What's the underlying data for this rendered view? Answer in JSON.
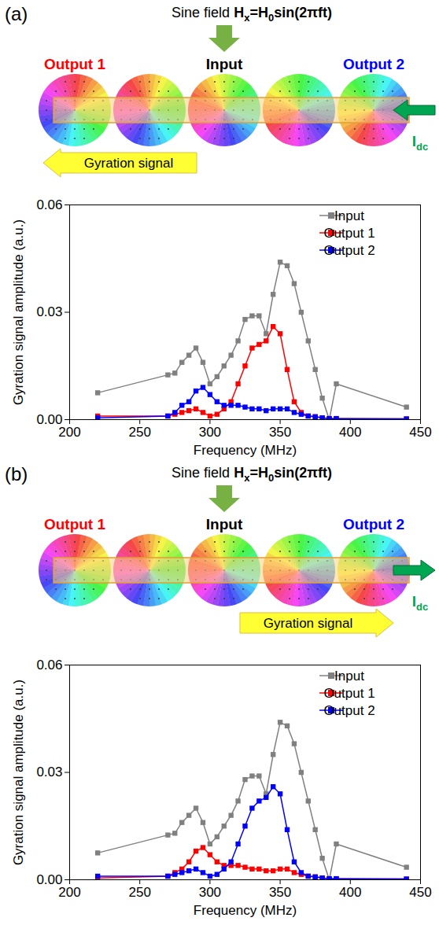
{
  "chart_data": [
    {
      "type": "line",
      "title": "(a)",
      "annotations": {
        "field": [
          {
            "text": "Sine field "
          },
          {
            "text": "H",
            "bold": true
          },
          {
            "text": "x",
            "bold": true,
            "sub": true
          },
          {
            "text": "=H",
            "bold": true
          },
          {
            "text": "0",
            "bold": true,
            "sub": true
          },
          {
            "text": "sin(2πft)",
            "bold": true
          }
        ],
        "labels": [
          {
            "text": "Output 1",
            "color": "#ff0000"
          },
          {
            "text": "Input",
            "color": "#000000"
          },
          {
            "text": "Output 2",
            "color": "#0000ff"
          }
        ],
        "current": {
          "runs": [
            {
              "text": "I",
              "bold": true
            },
            {
              "text": "dc",
              "bold": true,
              "sub": true
            }
          ],
          "direction": "left"
        },
        "signal": {
          "text": "Gyration signal",
          "direction": "left"
        }
      },
      "xlabel": "Frequency (MHz)",
      "ylabel": "Gyration signal amplitude (a.u.)",
      "x": [
        220,
        270,
        275,
        280,
        285,
        290,
        295,
        300,
        305,
        310,
        315,
        320,
        325,
        330,
        335,
        340,
        345,
        350,
        355,
        360,
        365,
        370,
        375,
        380,
        385,
        390,
        440
      ],
      "series": [
        {
          "name": "Input",
          "color": "#808080",
          "values": [
            0.0075,
            0.0125,
            0.013,
            0.016,
            0.018,
            0.02,
            0.016,
            0.01,
            0.012,
            0.015,
            0.018,
            0.022,
            0.028,
            0.029,
            0.029,
            0.024,
            0.035,
            0.044,
            0.043,
            0.038,
            0.03,
            0.022,
            0.014,
            0.006,
            0.0,
            0.01,
            0.0035
          ]
        },
        {
          "name": "Output 1",
          "color": "#ff0000",
          "values": [
            0.001,
            0.001,
            0.0015,
            0.002,
            0.0025,
            0.003,
            0.002,
            0.001,
            0.0015,
            0.003,
            0.005,
            0.01,
            0.015,
            0.02,
            0.021,
            0.022,
            0.026,
            0.024,
            0.014,
            0.005,
            0.002,
            0.001,
            0.0008,
            0.0005,
            0.0003,
            0.0003,
            0.0002
          ]
        },
        {
          "name": "Output 2",
          "color": "#0000ff",
          "values": [
            0.0005,
            0.001,
            0.002,
            0.004,
            0.005,
            0.008,
            0.009,
            0.007,
            0.005,
            0.004,
            0.004,
            0.004,
            0.0035,
            0.003,
            0.003,
            0.0025,
            0.003,
            0.003,
            0.003,
            0.002,
            0.0015,
            0.001,
            0.0008,
            0.0005,
            0.0003,
            0.0003,
            0.0002
          ]
        }
      ],
      "xlim": [
        200,
        450
      ],
      "xticks": [
        200,
        250,
        300,
        350,
        400,
        450
      ],
      "ylim": [
        0,
        0.06
      ],
      "yticks": [
        {
          "value": 0,
          "label": "0.00"
        },
        {
          "value": 0.03,
          "label": "0.03"
        },
        {
          "value": 0.06,
          "label": "0.06"
        }
      ],
      "marker": "square",
      "line_style": "solid",
      "grid": false,
      "legend": "top-right"
    },
    {
      "type": "line",
      "title": "(b)",
      "annotations": {
        "field": [
          {
            "text": "Sine field "
          },
          {
            "text": "H",
            "bold": true
          },
          {
            "text": "x",
            "bold": true,
            "sub": true
          },
          {
            "text": "=H",
            "bold": true
          },
          {
            "text": "0",
            "bold": true,
            "sub": true
          },
          {
            "text": "sin(2πft)",
            "bold": true
          }
        ],
        "labels": [
          {
            "text": "Output 1",
            "color": "#ff0000"
          },
          {
            "text": "Input",
            "color": "#000000"
          },
          {
            "text": "Output 2",
            "color": "#0000ff"
          }
        ],
        "current": {
          "runs": [
            {
              "text": "I",
              "bold": true
            },
            {
              "text": "dc",
              "bold": true,
              "sub": true
            }
          ],
          "direction": "right"
        },
        "signal": {
          "text": "Gyration signal",
          "direction": "right"
        }
      },
      "xlabel": "Frequency (MHz)",
      "ylabel": "Gyration signal amplitude (a.u.)",
      "x": [
        220,
        270,
        275,
        280,
        285,
        290,
        295,
        300,
        305,
        310,
        315,
        320,
        325,
        330,
        335,
        340,
        345,
        350,
        355,
        360,
        365,
        370,
        375,
        380,
        385,
        390,
        440
      ],
      "series": [
        {
          "name": "Input",
          "color": "#808080",
          "values": [
            0.0075,
            0.0125,
            0.013,
            0.016,
            0.018,
            0.02,
            0.016,
            0.01,
            0.012,
            0.015,
            0.018,
            0.022,
            0.028,
            0.029,
            0.029,
            0.024,
            0.035,
            0.044,
            0.043,
            0.038,
            0.03,
            0.022,
            0.014,
            0.006,
            0.0,
            0.01,
            0.0035
          ]
        },
        {
          "name": "Output 1",
          "color": "#ff0000",
          "values": [
            0.0005,
            0.001,
            0.002,
            0.003,
            0.005,
            0.008,
            0.009,
            0.007,
            0.005,
            0.004,
            0.004,
            0.004,
            0.0035,
            0.003,
            0.003,
            0.0025,
            0.0025,
            0.003,
            0.003,
            0.002,
            0.0015,
            0.001,
            0.0008,
            0.0005,
            0.0003,
            0.0003,
            0.0002
          ]
        },
        {
          "name": "Output 2",
          "color": "#0000ff",
          "values": [
            0.001,
            0.001,
            0.0015,
            0.002,
            0.0025,
            0.003,
            0.002,
            0.001,
            0.0015,
            0.003,
            0.005,
            0.01,
            0.015,
            0.02,
            0.022,
            0.023,
            0.026,
            0.024,
            0.014,
            0.005,
            0.002,
            0.001,
            0.0008,
            0.0005,
            0.0003,
            0.0003,
            0.0002
          ]
        }
      ],
      "xlim": [
        200,
        450
      ],
      "xticks": [
        200,
        250,
        300,
        350,
        400,
        450
      ],
      "ylim": [
        0,
        0.06
      ],
      "yticks": [
        {
          "value": 0,
          "label": "0.00"
        },
        {
          "value": 0.03,
          "label": "0.03"
        },
        {
          "value": 0.06,
          "label": "0.06"
        }
      ],
      "marker": "square",
      "line_style": "solid",
      "grid": false,
      "legend": "top-right"
    }
  ]
}
